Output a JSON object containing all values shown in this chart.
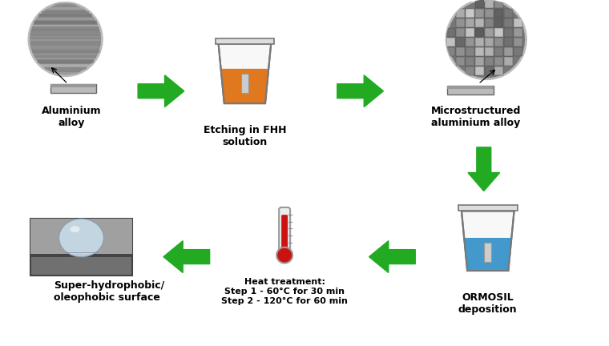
{
  "bg_color": "#ffffff",
  "arrow_color": "#22aa22",
  "text_color": "#000000",
  "labels": {
    "aluminium": "Aluminium\nalloy",
    "etching": "Etching in FHH\nsolution",
    "microstructured": "Microstructured\naluminium alloy",
    "ormosil": "ORMOSIL\ndeposition",
    "heat": "Heat treatment:\nStep 1 - 60°C for 30 min\nStep 2 - 120°C for 60 min",
    "superhydrophobic": "Super-hydrophobic/\noleophobic surface"
  },
  "beaker_orange_color": "#e07820",
  "beaker_blue_color": "#4499cc",
  "beaker_outline": "#777777",
  "thermometer_red": "#cc1111",
  "plate_color": "#aaaaaa",
  "circle_gray1": "#999999",
  "circle_gray2": "#888888"
}
